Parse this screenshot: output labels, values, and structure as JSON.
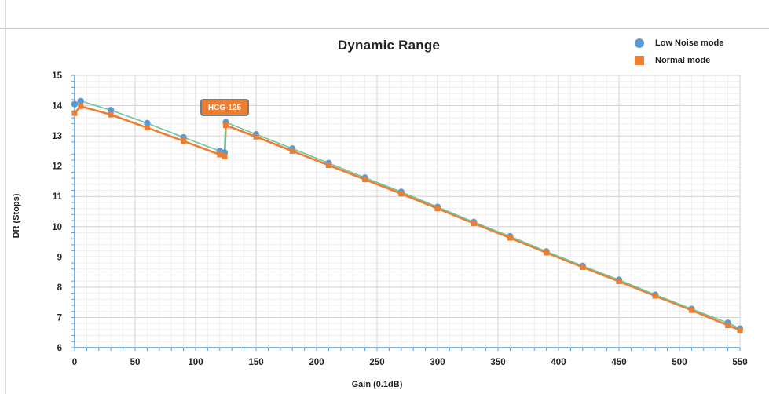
{
  "chart_data": {
    "type": "line",
    "title": "Dynamic Range",
    "xlabel": "Gain (0.1dB)",
    "ylabel": "DR (Stops)",
    "xlim": [
      0,
      550
    ],
    "ylim": [
      6,
      15
    ],
    "xticks": [
      0,
      50,
      100,
      150,
      200,
      250,
      300,
      350,
      400,
      450,
      500,
      550
    ],
    "yticks": [
      6,
      7,
      8,
      9,
      10,
      11,
      12,
      13,
      14,
      15
    ],
    "grid": true,
    "legend_position": "top-right",
    "annotation": "HCG-125",
    "series": [
      {
        "name": "Low Noise mode",
        "marker": "circle",
        "marker_color": "#5b9bd5",
        "line_color": "#70c49a",
        "points": [
          [
            0,
            14.05
          ],
          [
            5,
            14.15
          ],
          [
            30,
            13.85
          ],
          [
            60,
            13.42
          ],
          [
            90,
            12.95
          ],
          [
            120,
            12.5
          ],
          [
            124,
            12.45
          ],
          [
            125,
            13.45
          ],
          [
            150,
            13.05
          ],
          [
            180,
            12.58
          ],
          [
            210,
            12.1
          ],
          [
            240,
            11.62
          ],
          [
            270,
            11.15
          ],
          [
            300,
            10.65
          ],
          [
            330,
            10.15
          ],
          [
            360,
            9.68
          ],
          [
            390,
            9.18
          ],
          [
            420,
            8.7
          ],
          [
            450,
            8.24
          ],
          [
            480,
            7.75
          ],
          [
            510,
            7.28
          ],
          [
            540,
            6.82
          ],
          [
            550,
            6.63
          ]
        ]
      },
      {
        "name": "Normal mode",
        "marker": "square",
        "marker_color": "#ed7d31",
        "line_color": "#ed7d31",
        "points": [
          [
            0,
            13.75
          ],
          [
            5,
            13.98
          ],
          [
            30,
            13.7
          ],
          [
            60,
            13.27
          ],
          [
            90,
            12.83
          ],
          [
            120,
            12.38
          ],
          [
            124,
            12.32
          ],
          [
            125,
            13.35
          ],
          [
            150,
            12.97
          ],
          [
            180,
            12.5
          ],
          [
            210,
            12.03
          ],
          [
            240,
            11.56
          ],
          [
            270,
            11.09
          ],
          [
            300,
            10.6
          ],
          [
            330,
            10.11
          ],
          [
            360,
            9.63
          ],
          [
            390,
            9.14
          ],
          [
            420,
            8.66
          ],
          [
            450,
            8.19
          ],
          [
            480,
            7.71
          ],
          [
            510,
            7.24
          ],
          [
            540,
            6.74
          ],
          [
            550,
            6.58
          ]
        ]
      }
    ]
  }
}
